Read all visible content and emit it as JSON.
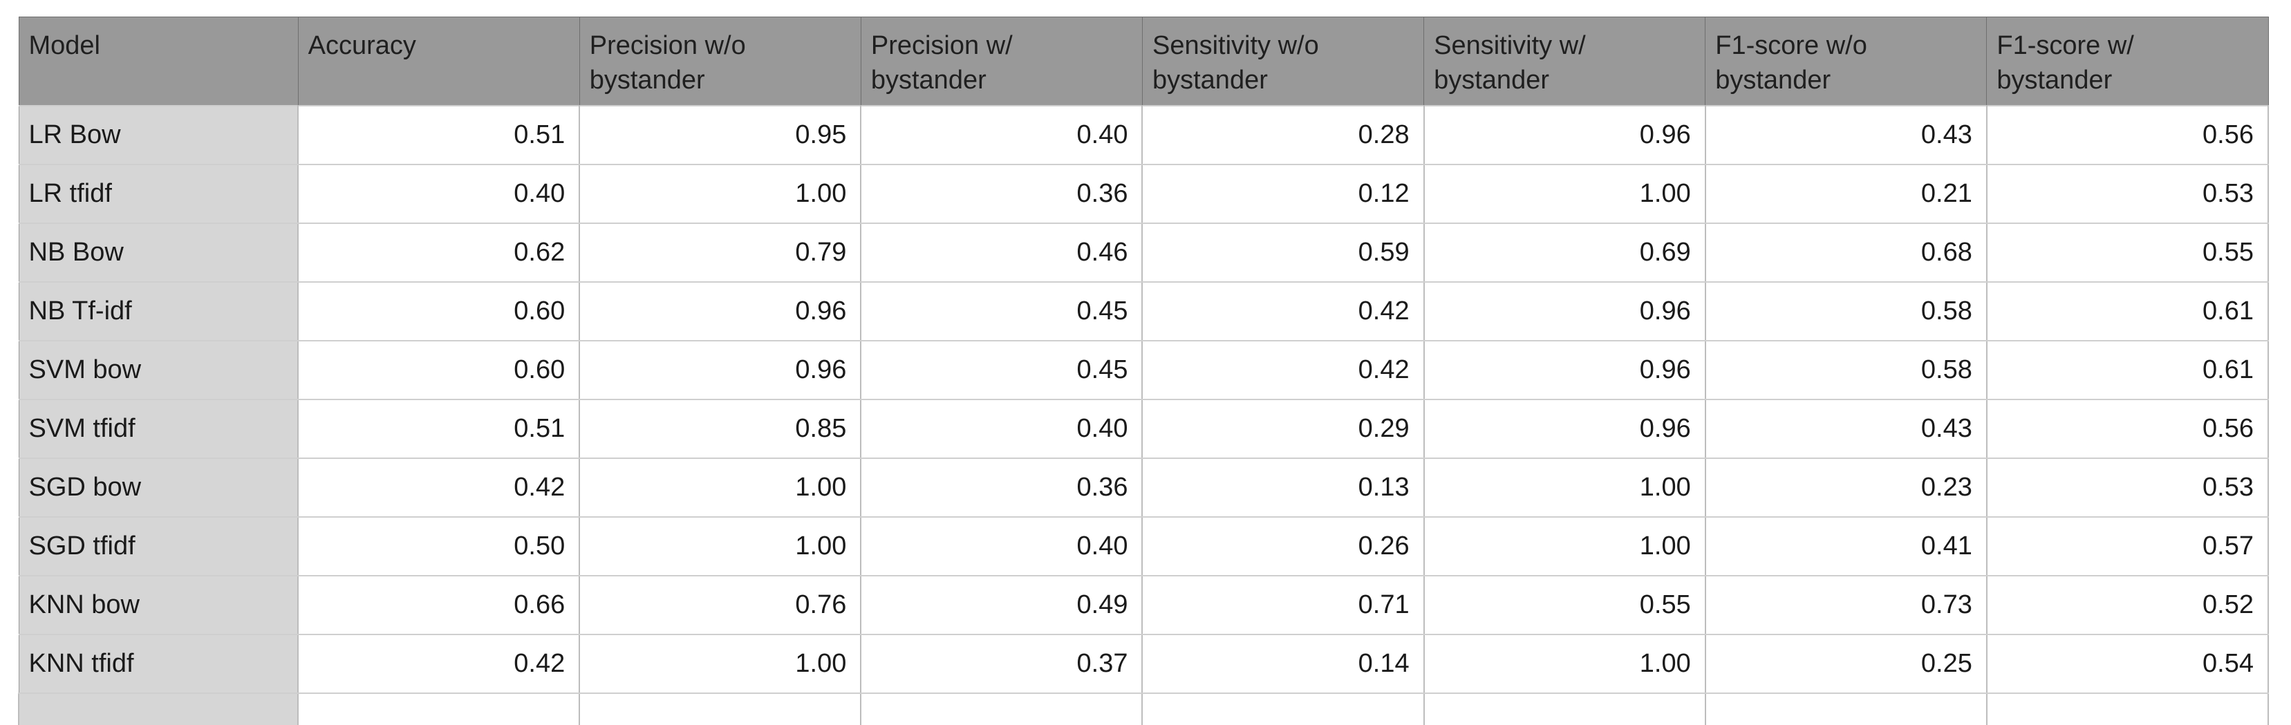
{
  "table": {
    "headers": [
      "Model",
      "Accuracy",
      "Precision w/o\nbystander",
      "Precision w/\nbystander",
      "Sensitivity w/o\nbystander",
      "Sensitivity w/\nbystander",
      "F1-score w/o\nbystander",
      "F1-score w/\nbystander"
    ],
    "rows": [
      [
        "LR Bow",
        "0.51",
        "0.95",
        "0.40",
        "0.28",
        "0.96",
        "0.43",
        "0.56"
      ],
      [
        "LR tfidf",
        "0.40",
        "1.00",
        "0.36",
        "0.12",
        "1.00",
        "0.21",
        "0.53"
      ],
      [
        "NB Bow",
        "0.62",
        "0.79",
        "0.46",
        "0.59",
        "0.69",
        "0.68",
        "0.55"
      ],
      [
        "NB Tf-idf",
        "0.60",
        "0.96",
        "0.45",
        "0.42",
        "0.96",
        "0.58",
        "0.61"
      ],
      [
        "SVM bow",
        "0.60",
        "0.96",
        "0.45",
        "0.42",
        "0.96",
        "0.58",
        "0.61"
      ],
      [
        "SVM tfidf",
        "0.51",
        "0.85",
        "0.40",
        "0.29",
        "0.96",
        "0.43",
        "0.56"
      ],
      [
        "SGD bow",
        "0.42",
        "1.00",
        "0.36",
        "0.13",
        "1.00",
        "0.23",
        "0.53"
      ],
      [
        "SGD tfidf",
        "0.50",
        "1.00",
        "0.40",
        "0.26",
        "1.00",
        "0.41",
        "0.57"
      ],
      [
        "KNN bow",
        "0.66",
        "0.76",
        "0.49",
        "0.71",
        "0.55",
        "0.73",
        "0.52"
      ],
      [
        "KNN tfidf",
        "0.42",
        "1.00",
        "0.37",
        "0.14",
        "1.00",
        "0.25",
        "0.54"
      ]
    ]
  },
  "colors": {
    "header_bg": "#999999",
    "model_col_bg": "#d6d6d6",
    "cell_bg": "#ffffff",
    "grid_line": "#cfcfcf"
  }
}
